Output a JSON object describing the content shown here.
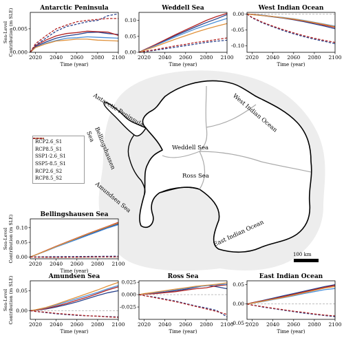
{
  "colors": {
    "RCP2.6_S1": "#27408b",
    "RCP8.5_S1": "#b22222",
    "SSP1-2.6_S1": "#4a90d9",
    "SSP5-8.5_S1": "#e0913a",
    "RCP2.6_S2": "#27408b",
    "RCP8.5_S2": "#b22222"
  },
  "legend": {
    "items": [
      {
        "label": "RCP2.6_S1",
        "style": "solid",
        "color": "#27408b"
      },
      {
        "label": "RCP8.5_S1",
        "style": "solid",
        "color": "#b22222"
      },
      {
        "label": "SSP1-2.6_S1",
        "style": "solid",
        "color": "#4a90d9"
      },
      {
        "label": "SSP5-8.5_S1",
        "style": "solid",
        "color": "#e0913a"
      },
      {
        "label": "RCP2.6_S2",
        "style": "dashed",
        "color": "#27408b"
      },
      {
        "label": "RCP8.5_S2",
        "style": "dashed",
        "color": "#b22222"
      }
    ]
  },
  "map": {
    "labels": {
      "antarctic_peninsula": "Antarctic Peninsula",
      "weddell": "Weddell Sea",
      "west_indian": "West Indian Ocean",
      "bellingshausen_1": "Bellingshausen",
      "bellingshausen_2": "Sea",
      "ross": "Ross Sea",
      "amundsen": "Amundsen Sea",
      "east_indian": "East Indian Ocean"
    },
    "scale_label": "100 km"
  },
  "chart_data": [
    {
      "type": "line",
      "title": "Antarctic Peninsula",
      "ylabel": "Sea-Level Contribution (m SLE)",
      "xlabel": "Time (year)",
      "xlim": [
        2015,
        2100
      ],
      "ylim": [
        0,
        0.0085
      ],
      "xticks": [
        2020,
        2040,
        2060,
        2080,
        2100
      ],
      "xtick_labels": [
        "2020",
        "2040",
        "2060",
        "2080",
        "2100"
      ],
      "yticks": [
        0,
        0.005
      ],
      "ytick_labels": [
        "0.000",
        "0.005"
      ],
      "x": [
        2015,
        2020,
        2030,
        2040,
        2050,
        2060,
        2070,
        2080,
        2090,
        2100
      ],
      "series": [
        {
          "name": "RCP2.6_S1",
          "values": [
            0,
            0.0012,
            0.0022,
            0.003,
            0.0035,
            0.0038,
            0.0042,
            0.0043,
            0.004,
            0.0038
          ]
        },
        {
          "name": "RCP8.5_S1",
          "values": [
            0,
            0.0014,
            0.0026,
            0.0035,
            0.004,
            0.0042,
            0.0045,
            0.0044,
            0.0043,
            0.0036
          ]
        },
        {
          "name": "SSP1-2.6_S1",
          "values": [
            0,
            0.001,
            0.0019,
            0.0025,
            0.003,
            0.0031,
            0.0033,
            0.0032,
            0.0031,
            0.003
          ]
        },
        {
          "name": "SSP5-8.5_S1",
          "values": [
            0,
            0.001,
            0.0018,
            0.0024,
            0.0026,
            0.0028,
            0.0028,
            0.0026,
            0.0025,
            0.0024
          ]
        },
        {
          "name": "RCP2.6_S2",
          "values": [
            0,
            0.0015,
            0.003,
            0.0045,
            0.0055,
            0.006,
            0.0065,
            0.0068,
            0.0078,
            0.0082
          ]
        },
        {
          "name": "RCP8.5_S2",
          "values": [
            0,
            0.0018,
            0.0035,
            0.005,
            0.0058,
            0.0065,
            0.0068,
            0.007,
            0.0072,
            0.0072
          ]
        }
      ]
    },
    {
      "type": "line",
      "title": "Weddell Sea",
      "xlabel": "Time (year)",
      "xlim": [
        2015,
        2100
      ],
      "ylim": [
        0,
        0.125
      ],
      "xticks": [
        2020,
        2040,
        2060,
        2080,
        2100
      ],
      "xtick_labels": [
        "2020",
        "2040",
        "2060",
        "2080",
        "2100"
      ],
      "yticks": [
        0,
        0.05,
        0.1
      ],
      "ytick_labels": [
        "0.00",
        "0.05",
        "0.10"
      ],
      "x": [
        2015,
        2020,
        2030,
        2040,
        2050,
        2060,
        2070,
        2080,
        2090,
        2100
      ],
      "series": [
        {
          "name": "RCP2.6_S1",
          "values": [
            0,
            0.008,
            0.022,
            0.037,
            0.052,
            0.066,
            0.08,
            0.093,
            0.105,
            0.118
          ]
        },
        {
          "name": "RCP8.5_S1",
          "values": [
            0,
            0.008,
            0.023,
            0.039,
            0.055,
            0.07,
            0.085,
            0.1,
            0.112,
            0.122
          ]
        },
        {
          "name": "SSP1-2.6_S1",
          "values": [
            0,
            0.007,
            0.02,
            0.034,
            0.048,
            0.061,
            0.074,
            0.085,
            0.096,
            0.106
          ]
        },
        {
          "name": "SSP5-8.5_S1",
          "values": [
            0,
            0.006,
            0.017,
            0.029,
            0.041,
            0.052,
            0.063,
            0.073,
            0.082,
            0.09
          ]
        },
        {
          "name": "RCP2.6_S2",
          "values": [
            0,
            0.002,
            0.006,
            0.011,
            0.016,
            0.021,
            0.026,
            0.031,
            0.035,
            0.038
          ]
        },
        {
          "name": "RCP8.5_S2",
          "values": [
            0,
            0.003,
            0.008,
            0.014,
            0.02,
            0.025,
            0.031,
            0.035,
            0.04,
            0.045
          ]
        }
      ]
    },
    {
      "type": "line",
      "title": "West Indian Ocean",
      "xlabel": "Time (year)",
      "xlim": [
        2015,
        2100
      ],
      "ylim": [
        -0.12,
        0.005
      ],
      "xticks": [
        2020,
        2040,
        2060,
        2080,
        2100
      ],
      "xtick_labels": [
        "2020",
        "2040",
        "2060",
        "2080",
        "2100"
      ],
      "yticks": [
        0,
        -0.05,
        -0.1
      ],
      "ytick_labels": [
        "0.00",
        "-0.05",
        "-0.10"
      ],
      "x": [
        2015,
        2020,
        2030,
        2040,
        2050,
        2060,
        2070,
        2080,
        2090,
        2100
      ],
      "series": [
        {
          "name": "RCP2.6_S1",
          "values": [
            0,
            -0.002,
            -0.005,
            -0.009,
            -0.013,
            -0.018,
            -0.024,
            -0.031,
            -0.038,
            -0.046
          ]
        },
        {
          "name": "RCP8.5_S1",
          "values": [
            0,
            -0.001,
            -0.004,
            -0.008,
            -0.012,
            -0.017,
            -0.022,
            -0.028,
            -0.035,
            -0.042
          ]
        },
        {
          "name": "SSP1-2.6_S1",
          "values": [
            0,
            -0.002,
            -0.004,
            -0.008,
            -0.011,
            -0.015,
            -0.02,
            -0.026,
            -0.032,
            -0.038
          ]
        },
        {
          "name": "SSP5-8.5_S1",
          "values": [
            0,
            -0.002,
            -0.005,
            -0.008,
            -0.012,
            -0.016,
            -0.021,
            -0.027,
            -0.033,
            -0.04
          ]
        },
        {
          "name": "RCP2.6_S2",
          "values": [
            0,
            -0.012,
            -0.028,
            -0.04,
            -0.052,
            -0.062,
            -0.071,
            -0.079,
            -0.086,
            -0.093
          ]
        },
        {
          "name": "RCP8.5_S2",
          "values": [
            0,
            -0.011,
            -0.026,
            -0.038,
            -0.049,
            -0.059,
            -0.068,
            -0.076,
            -0.083,
            -0.089
          ]
        }
      ]
    },
    {
      "type": "line",
      "title": "Bellingshausen Sea",
      "ylabel": "Sea-Level Contribution (m SLE)",
      "xlabel": "Time (year)",
      "xlim": [
        2015,
        2100
      ],
      "ylim": [
        -0.006,
        0.13
      ],
      "xticks": [
        2020,
        2040,
        2060,
        2080,
        2100
      ],
      "xtick_labels": [
        "2020",
        "2040",
        "2060",
        "2080",
        "2100"
      ],
      "yticks": [
        0,
        0.05,
        0.1
      ],
      "ytick_labels": [
        "0.00",
        "0.05",
        "0.10"
      ],
      "x": [
        2015,
        2020,
        2030,
        2040,
        2050,
        2060,
        2070,
        2080,
        2090,
        2100
      ],
      "series": [
        {
          "name": "RCP2.6_S1",
          "values": [
            0,
            0.007,
            0.021,
            0.035,
            0.049,
            0.062,
            0.075,
            0.088,
            0.101,
            0.113
          ]
        },
        {
          "name": "RCP8.5_S1",
          "values": [
            0,
            0.007,
            0.022,
            0.037,
            0.051,
            0.065,
            0.079,
            0.092,
            0.105,
            0.118
          ]
        },
        {
          "name": "SSP1-2.6_S1",
          "values": [
            0,
            0.007,
            0.02,
            0.034,
            0.047,
            0.06,
            0.073,
            0.086,
            0.099,
            0.11
          ]
        },
        {
          "name": "SSP5-8.5_S1",
          "values": [
            0,
            0.007,
            0.021,
            0.036,
            0.05,
            0.064,
            0.078,
            0.091,
            0.104,
            0.116
          ]
        },
        {
          "name": "RCP2.6_S2",
          "values": [
            0,
            0.0005,
            0.001,
            0.0012,
            0.0015,
            0.0018,
            0.002,
            0.0022,
            0.0025,
            0.003
          ]
        },
        {
          "name": "RCP8.5_S2",
          "values": [
            0,
            -0.0005,
            -0.0008,
            -0.001,
            -0.0008,
            -0.0005,
            -0.0002,
            0,
            0.0002,
            0.0005
          ]
        }
      ]
    },
    {
      "type": "line",
      "title": "Amundsen Sea",
      "ylabel": "Sea-Level Contribution (m SLE)",
      "xlabel": "Time (year)",
      "xlim": [
        2015,
        2100
      ],
      "ylim": [
        -0.022,
        0.075
      ],
      "xticks": [
        2020,
        2040,
        2060,
        2080,
        2100
      ],
      "xtick_labels": [
        "2020",
        "2040",
        "2060",
        "2080",
        "2100"
      ],
      "yticks": [
        0,
        0.05
      ],
      "ytick_labels": [
        "0.00",
        "0.05"
      ],
      "x": [
        2015,
        2020,
        2030,
        2040,
        2050,
        2060,
        2070,
        2080,
        2090,
        2100
      ],
      "series": [
        {
          "name": "RCP2.6_S1",
          "values": [
            0,
            0.001,
            0.004,
            0.009,
            0.015,
            0.022,
            0.03,
            0.038,
            0.045,
            0.05
          ]
        },
        {
          "name": "RCP8.5_S1",
          "values": [
            0,
            0.001,
            0.005,
            0.011,
            0.018,
            0.026,
            0.034,
            0.043,
            0.052,
            0.06
          ]
        },
        {
          "name": "SSP1-2.6_S1",
          "values": [
            0,
            0.002,
            0.007,
            0.014,
            0.022,
            0.03,
            0.038,
            0.046,
            0.055,
            0.063
          ]
        },
        {
          "name": "SSP5-8.5_S1",
          "values": [
            0,
            0.002,
            0.008,
            0.016,
            0.025,
            0.034,
            0.043,
            0.052,
            0.062,
            0.071
          ]
        },
        {
          "name": "RCP2.6_S2",
          "values": [
            0,
            -0.002,
            -0.005,
            -0.008,
            -0.01,
            -0.012,
            -0.013,
            -0.014,
            -0.015,
            -0.016
          ]
        },
        {
          "name": "RCP8.5_S2",
          "values": [
            0,
            -0.002,
            -0.004,
            -0.007,
            -0.009,
            -0.011,
            -0.013,
            -0.014,
            -0.016,
            -0.017
          ]
        }
      ]
    },
    {
      "type": "line",
      "title": "Ross Sea",
      "xlabel": "Time (year)",
      "xlim": [
        2015,
        2100
      ],
      "ylim": [
        -0.05,
        0.028
      ],
      "xticks": [
        2020,
        2040,
        2060,
        2080,
        2100
      ],
      "xtick_labels": [
        "2020",
        "2040",
        "2060",
        "2080",
        "2100"
      ],
      "yticks": [
        0.025,
        0,
        -0.025
      ],
      "ytick_labels": [
        "0.025",
        "0.000",
        "-0.025"
      ],
      "x": [
        2015,
        2020,
        2030,
        2040,
        2050,
        2060,
        2070,
        2080,
        2090,
        2100
      ],
      "series": [
        {
          "name": "RCP2.6_S1",
          "values": [
            0,
            0.001,
            0.003,
            0.005,
            0.008,
            0.011,
            0.015,
            0.019,
            0.016,
            0.012
          ]
        },
        {
          "name": "RCP8.5_S1",
          "values": [
            0,
            0.001,
            0.002,
            0.004,
            0.006,
            0.009,
            0.012,
            0.014,
            0.018,
            0.02
          ]
        },
        {
          "name": "SSP1-2.6_S1",
          "values": [
            0,
            0.002,
            0.004,
            0.007,
            0.01,
            0.013,
            0.016,
            0.018,
            0.02,
            0.021
          ]
        },
        {
          "name": "SSP5-8.5_S1",
          "values": [
            0,
            0.002,
            0.005,
            0.008,
            0.011,
            0.014,
            0.017,
            0.019,
            0.021,
            0.024
          ]
        },
        {
          "name": "RCP2.6_S2",
          "values": [
            0,
            -0.002,
            -0.005,
            -0.009,
            -0.013,
            -0.018,
            -0.023,
            -0.027,
            -0.032,
            -0.045
          ]
        },
        {
          "name": "RCP8.5_S2",
          "values": [
            0,
            -0.002,
            -0.006,
            -0.01,
            -0.014,
            -0.019,
            -0.024,
            -0.029,
            -0.034,
            -0.04
          ]
        }
      ]
    },
    {
      "type": "line",
      "title": "East Indian Ocean",
      "xlabel": "Time (year)",
      "xlim": [
        2015,
        2100
      ],
      "ylim": [
        -0.04,
        0.06
      ],
      "xticks": [
        2020,
        2040,
        2060,
        2080,
        2100
      ],
      "xtick_labels": [
        "2020",
        "2040",
        "2060",
        "2080",
        "2100"
      ],
      "yticks": [
        0.05,
        0,
        -0.05
      ],
      "ytick_labels": [
        "0.05",
        "0.00",
        "-0.05"
      ],
      "x": [
        2015,
        2020,
        2030,
        2040,
        2050,
        2060,
        2070,
        2080,
        2090,
        2100
      ],
      "series": [
        {
          "name": "RCP2.6_S1",
          "values": [
            0,
            0.003,
            0.009,
            0.015,
            0.021,
            0.027,
            0.033,
            0.039,
            0.045,
            0.05
          ]
        },
        {
          "name": "RCP8.5_S1",
          "values": [
            0,
            0.003,
            0.008,
            0.013,
            0.019,
            0.025,
            0.031,
            0.037,
            0.043,
            0.048
          ]
        },
        {
          "name": "SSP1-2.6_S1",
          "values": [
            0,
            0.002,
            0.006,
            0.011,
            0.016,
            0.021,
            0.027,
            0.032,
            0.037,
            0.04
          ]
        },
        {
          "name": "SSP5-8.5_S1",
          "values": [
            0,
            0.002,
            0.007,
            0.012,
            0.017,
            0.023,
            0.029,
            0.035,
            0.041,
            0.045
          ]
        },
        {
          "name": "RCP2.6_S2",
          "values": [
            0,
            -0.003,
            -0.008,
            -0.012,
            -0.016,
            -0.02,
            -0.024,
            -0.027,
            -0.03,
            -0.033
          ]
        },
        {
          "name": "RCP8.5_S2",
          "values": [
            0,
            -0.003,
            -0.007,
            -0.011,
            -0.015,
            -0.019,
            -0.022,
            -0.026,
            -0.029,
            -0.031
          ]
        }
      ]
    }
  ]
}
